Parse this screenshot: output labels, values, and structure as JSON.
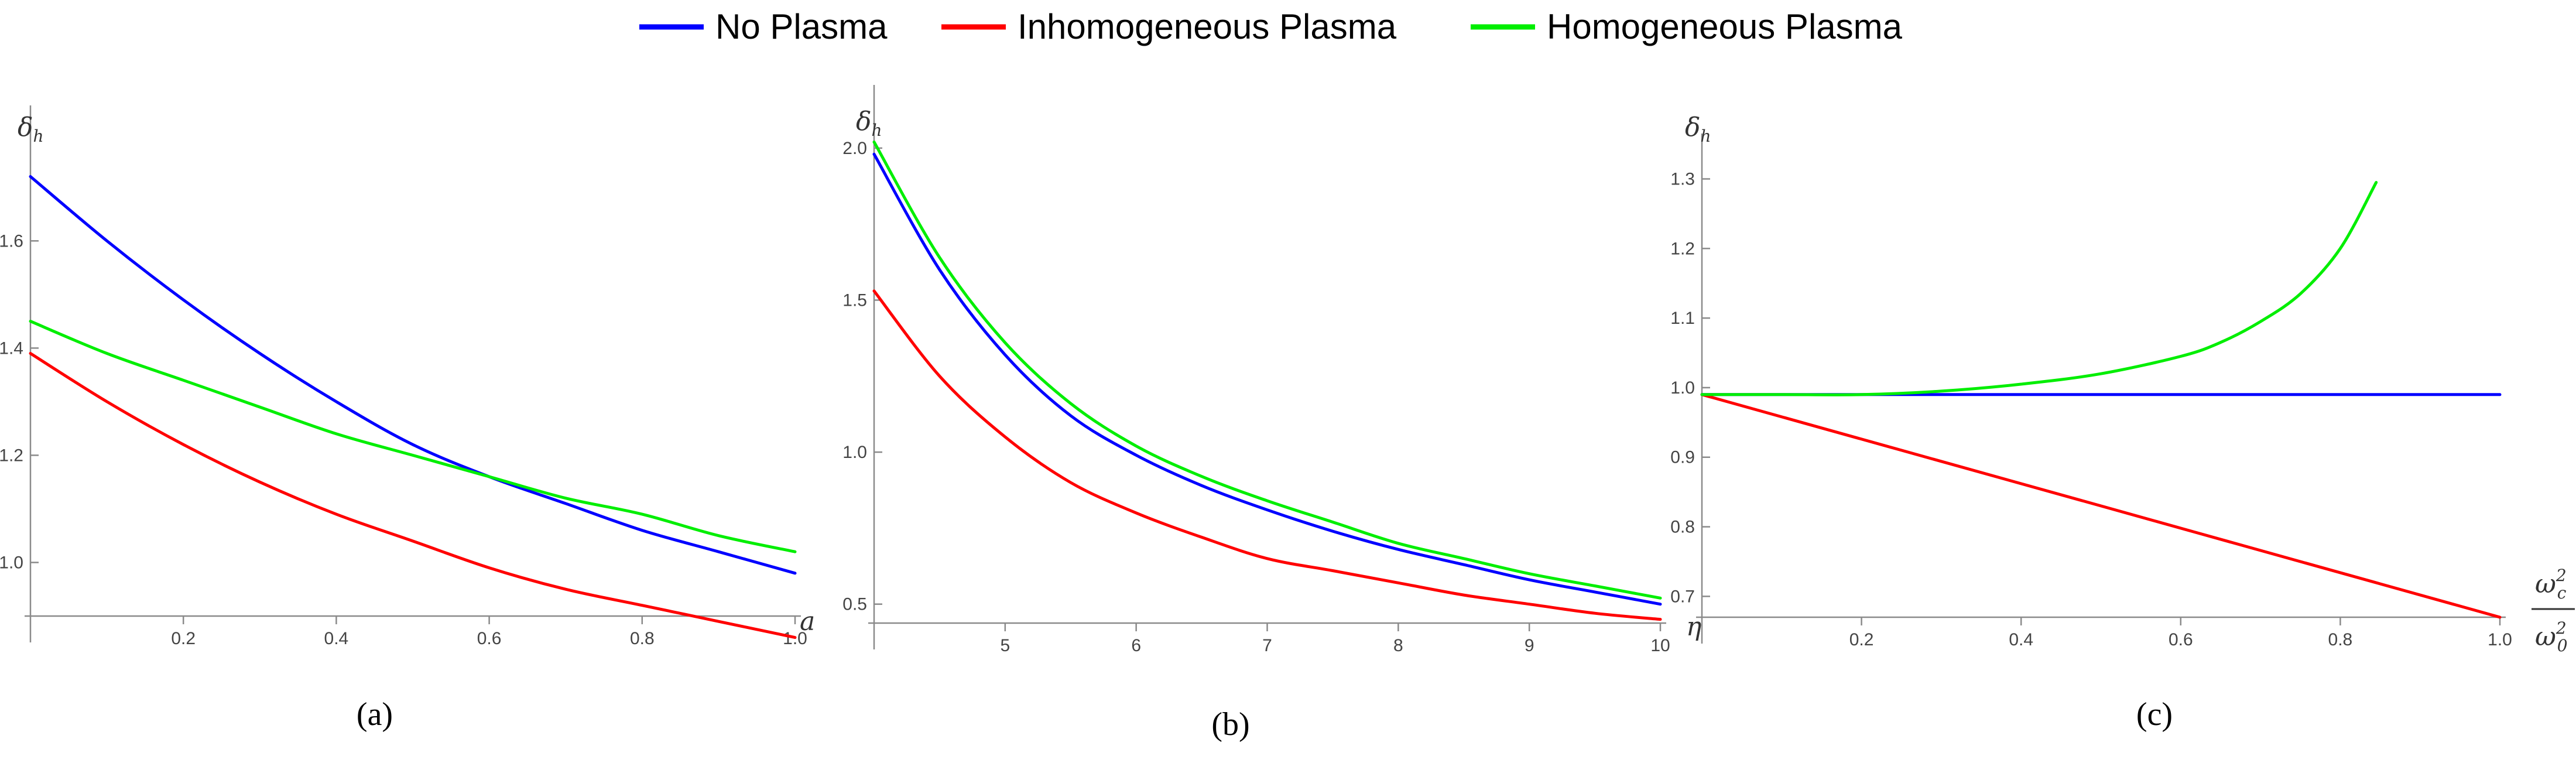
{
  "legend": {
    "entries": [
      {
        "label": "No Plasma",
        "color": "#0000ff"
      },
      {
        "label": "Inhomogeneous Plasma",
        "color": "#ff0000"
      },
      {
        "label": "Homogeneous Plasma",
        "color": "#00ee00"
      }
    ]
  },
  "chart_data": [
    {
      "type": "line",
      "caption": "(a)",
      "ylabel_main": "δ",
      "ylabel_sub": "h",
      "xlabel": "a",
      "xlim": [
        0,
        1.0
      ],
      "ylim": [
        0.9,
        1.82
      ],
      "xticks": [
        0.2,
        0.4,
        0.6,
        0.8,
        1.0
      ],
      "xtick_labels": [
        "0.2",
        "0.4",
        "0.6",
        "0.8",
        "1.0"
      ],
      "yticks": [
        1.0,
        1.2,
        1.4,
        1.6
      ],
      "ytick_labels": [
        "1.0",
        "1.2",
        "1.4",
        "1.6"
      ],
      "series": [
        {
          "name": "No Plasma",
          "color": "#0000ff",
          "x": [
            0,
            0.1,
            0.2,
            0.3,
            0.4,
            0.5,
            0.6,
            0.7,
            0.8,
            0.9,
            1.0
          ],
          "y": [
            1.72,
            1.6,
            1.49,
            1.39,
            1.3,
            1.22,
            1.16,
            1.11,
            1.06,
            1.02,
            0.98
          ]
        },
        {
          "name": "Inhomogeneous Plasma",
          "color": "#ff0000",
          "x": [
            0,
            0.1,
            0.2,
            0.3,
            0.4,
            0.5,
            0.6,
            0.7,
            0.8,
            0.9,
            1.0
          ],
          "y": [
            1.39,
            1.3,
            1.22,
            1.15,
            1.09,
            1.04,
            0.99,
            0.95,
            0.92,
            0.89,
            0.86
          ]
        },
        {
          "name": "Homogeneous Plasma",
          "color": "#00ee00",
          "x": [
            0,
            0.1,
            0.2,
            0.3,
            0.4,
            0.5,
            0.6,
            0.7,
            0.8,
            0.9,
            1.0
          ],
          "y": [
            1.45,
            1.39,
            1.34,
            1.29,
            1.24,
            1.2,
            1.16,
            1.12,
            1.09,
            1.05,
            1.02
          ]
        }
      ]
    },
    {
      "type": "line",
      "caption": "(b)",
      "ylabel_main": "δ",
      "ylabel_sub": "h",
      "xlabel": "η",
      "xlim": [
        4.0,
        10.0
      ],
      "ylim": [
        0.43,
        2.15
      ],
      "xticks": [
        5,
        6,
        7,
        8,
        9,
        10
      ],
      "xtick_labels": [
        "5",
        "6",
        "7",
        "8",
        "9",
        "10"
      ],
      "yticks": [
        0.5,
        1.0,
        1.5,
        2.0
      ],
      "ytick_labels": [
        "0.5",
        "1.0",
        "1.5",
        "2.0"
      ],
      "series": [
        {
          "name": "No Plasma",
          "color": "#0000ff",
          "x": [
            4.0,
            4.5,
            5.0,
            5.5,
            6.0,
            6.5,
            7.0,
            7.5,
            8.0,
            8.5,
            9.0,
            9.5,
            10.0
          ],
          "y": [
            1.98,
            1.6,
            1.32,
            1.12,
            0.99,
            0.89,
            0.81,
            0.74,
            0.68,
            0.63,
            0.58,
            0.54,
            0.5
          ]
        },
        {
          "name": "Inhomogeneous Plasma",
          "color": "#ff0000",
          "x": [
            4.0,
            4.5,
            5.0,
            5.5,
            6.0,
            6.5,
            7.0,
            7.5,
            8.0,
            8.5,
            9.0,
            9.5,
            10.0
          ],
          "y": [
            1.53,
            1.25,
            1.05,
            0.9,
            0.8,
            0.72,
            0.65,
            0.61,
            0.57,
            0.53,
            0.5,
            0.47,
            0.45
          ]
        },
        {
          "name": "Homogeneous Plasma",
          "color": "#00ee00",
          "x": [
            4.0,
            4.5,
            5.0,
            5.5,
            6.0,
            6.5,
            7.0,
            7.5,
            8.0,
            8.5,
            9.0,
            9.5,
            10.0
          ],
          "y": [
            2.02,
            1.64,
            1.36,
            1.16,
            1.02,
            0.92,
            0.84,
            0.77,
            0.7,
            0.65,
            0.6,
            0.56,
            0.52
          ]
        }
      ]
    },
    {
      "type": "line",
      "caption": "(c)",
      "ylabel_main": "δ",
      "ylabel_sub": "h",
      "xlabel_num_main": "ω",
      "xlabel_num_sub": "c",
      "xlabel_num_sup": "2",
      "xlabel_den_main": "ω",
      "xlabel_den_sub": "0",
      "xlabel_den_sup": "2",
      "xlim": [
        0,
        1.0
      ],
      "ylim": [
        0.67,
        1.34
      ],
      "xticks": [
        0.2,
        0.4,
        0.6,
        0.8,
        1.0
      ],
      "xtick_labels": [
        "0.2",
        "0.4",
        "0.6",
        "0.8",
        "1.0"
      ],
      "yticks": [
        0.7,
        0.8,
        0.9,
        1.0,
        1.1,
        1.2,
        1.3
      ],
      "ytick_labels": [
        "0.7",
        "0.8",
        "0.9",
        "1.0",
        "1.1",
        "1.2",
        "1.3"
      ],
      "series": [
        {
          "name": "No Plasma",
          "color": "#0000ff",
          "x": [
            0,
            0.25,
            0.5,
            0.75,
            1.0
          ],
          "y": [
            0.99,
            0.99,
            0.99,
            0.99,
            0.99
          ]
        },
        {
          "name": "Inhomogeneous Plasma",
          "color": "#ff0000",
          "x": [
            0,
            0.25,
            0.5,
            0.75,
            1.0
          ],
          "y": [
            0.99,
            0.91,
            0.83,
            0.75,
            0.67
          ]
        },
        {
          "name": "Homogeneous Plasma",
          "color": "#00ee00",
          "x": [
            0,
            0.1,
            0.2,
            0.3,
            0.4,
            0.5,
            0.6,
            0.65,
            0.7,
            0.75,
            0.8,
            0.845
          ],
          "y": [
            0.99,
            0.99,
            0.99,
            0.995,
            1.005,
            1.02,
            1.045,
            1.065,
            1.095,
            1.135,
            1.2,
            1.295
          ]
        }
      ]
    }
  ]
}
